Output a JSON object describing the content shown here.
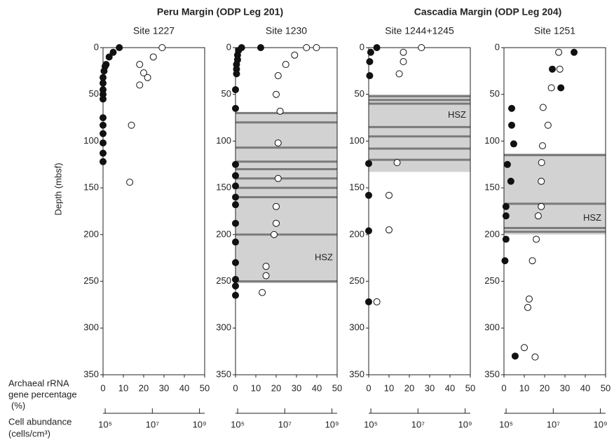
{
  "headers": [
    "Peru Margin (ODP Leg 201)",
    "Cascadia Margin (ODP Leg 204)"
  ],
  "ylabel": "Depth (mbsf)",
  "xlabel": [
    "Archaeal rRNA",
    "gene percentage",
    "(%)"
  ],
  "x2label": [
    "Cell abundance",
    "(cells/cm³)"
  ],
  "chart_data": [
    {
      "type": "scatter",
      "title": "Site 1227",
      "ylim": [
        0,
        350
      ],
      "y_inverted": true,
      "yticks": [
        0,
        50,
        100,
        150,
        200,
        250,
        300,
        350
      ],
      "xlim": [
        0,
        50
      ],
      "xticks": [
        0,
        10,
        20,
        30,
        40,
        50
      ],
      "x2lim": [
        81000,
        1660000000
      ],
      "x2log": true,
      "x2ticks": [
        {
          "value": 100000,
          "label": "10⁵"
        },
        {
          "value": 10000000,
          "label": "10⁷"
        },
        {
          "value": 1000000000,
          "label": "10⁹"
        }
      ],
      "series": [
        {
          "marker": "filled",
          "color": "#111111",
          "x": [
            8,
            5,
            3,
            1.5,
            1,
            0.5,
            0,
            0,
            0,
            0,
            0,
            0,
            0,
            0,
            0,
            0,
            0
          ],
          "y": [
            0,
            5,
            10,
            18,
            20,
            25,
            32,
            38,
            45,
            50,
            55,
            75,
            83,
            92,
            102,
            113,
            122
          ]
        },
        {
          "marker": "open",
          "color": "#111111",
          "axis": "x2",
          "x": [
            26000000,
            11000000,
            2900000,
            4300000,
            6300000,
            2900000,
            1300000,
            1100000
          ],
          "y": [
            0,
            10,
            18,
            27,
            32,
            40,
            83,
            144
          ]
        }
      ]
    },
    {
      "type": "scatter",
      "title": "Site 1230",
      "ylim": [
        0,
        350
      ],
      "y_inverted": true,
      "yticks": [
        0,
        50,
        100,
        150,
        200,
        250,
        300,
        350
      ],
      "xlim": [
        0,
        50
      ],
      "xticks": [
        0,
        10,
        20,
        30,
        40,
        50
      ],
      "x2lim": [
        81000,
        1660000000
      ],
      "x2log": true,
      "x2ticks": [
        {
          "value": 100000,
          "label": "10⁵"
        },
        {
          "value": 10000000,
          "label": "10⁷"
        },
        {
          "value": 1000000000,
          "label": "10⁹"
        }
      ],
      "hsz": {
        "label": "HSZ",
        "range": [
          70,
          252
        ],
        "lines": [
          70,
          80,
          107,
          122,
          130,
          140,
          150,
          160,
          200,
          250
        ]
      },
      "series": [
        {
          "marker": "filled",
          "color": "#111111",
          "x": [
            12.4,
            3,
            1.5,
            1,
            1,
            0.5,
            0.5,
            0.5,
            0,
            0,
            0,
            0,
            0,
            0,
            0,
            0,
            0,
            0,
            0,
            0,
            0
          ],
          "y": [
            0,
            0,
            3,
            8,
            13,
            18,
            23,
            28,
            45,
            65,
            125,
            137,
            148,
            160,
            168,
            188,
            208,
            230,
            248,
            255,
            265
          ]
        },
        {
          "marker": "open",
          "color": "#111111",
          "axis": "x2",
          "x": [
            83000000,
            220000000,
            26000000,
            11000000,
            5200000,
            4300000,
            6300000,
            5200000,
            5200000,
            4300000,
            4300000,
            3500000,
            1600000,
            1600000,
            1100000
          ],
          "y": [
            0,
            0,
            8,
            18,
            30,
            50,
            68,
            102,
            140,
            170,
            188,
            200,
            234,
            244,
            262
          ]
        }
      ]
    },
    {
      "type": "scatter",
      "title": "Site 1244+1245",
      "ylim": [
        0,
        350
      ],
      "y_inverted": true,
      "yticks": [
        0,
        50,
        100,
        150,
        200,
        250,
        300,
        350
      ],
      "xlim": [
        0,
        50
      ],
      "xticks": [
        0,
        10,
        20,
        30,
        40,
        50
      ],
      "x2lim": [
        81000,
        1660000000
      ],
      "x2log": true,
      "x2ticks": [
        {
          "value": 100000,
          "label": "10⁵"
        },
        {
          "value": 10000000,
          "label": "10⁷"
        },
        {
          "value": 1000000000,
          "label": "10⁹"
        }
      ],
      "hsz": {
        "label": "HSZ",
        "range": [
          50,
          133
        ],
        "lines": [
          52,
          56,
          60,
          85,
          95,
          108,
          120
        ]
      },
      "series": [
        {
          "marker": "filled",
          "color": "#111111",
          "x": [
            4,
            1,
            0.5,
            0.5,
            0,
            0,
            0,
            0
          ],
          "y": [
            0,
            5,
            15,
            30,
            124,
            158,
            196,
            272
          ]
        },
        {
          "marker": "open",
          "color": "#111111",
          "axis": "x2",
          "x": [
            14000000,
            2400000,
            2400000,
            1600000,
            1300000,
            590000,
            590000,
            180000
          ],
          "y": [
            0,
            5,
            15,
            28,
            123,
            158,
            195,
            272
          ]
        }
      ]
    },
    {
      "type": "scatter",
      "title": "Site 1251",
      "ylim": [
        0,
        350
      ],
      "y_inverted": true,
      "yticks": [
        0,
        50,
        100,
        150,
        200,
        250,
        300,
        350
      ],
      "xlim": [
        0,
        50
      ],
      "xticks": [
        0,
        10,
        20,
        30,
        40,
        50
      ],
      "x2lim": [
        81000,
        1660000000
      ],
      "x2log": true,
      "x2ticks": [
        {
          "value": 100000,
          "label": "10⁵"
        },
        {
          "value": 10000000,
          "label": "10⁷"
        },
        {
          "value": 1000000000,
          "label": "10⁹"
        }
      ],
      "hsz": {
        "label": "HSZ",
        "range": [
          113,
          200
        ],
        "lines": [
          115,
          167,
          193,
          197
        ]
      },
      "series": [
        {
          "marker": "filled",
          "color": "#111111",
          "x": [
            34.5,
            23.8,
            28,
            3.8,
            3.8,
            4.8,
            1.7,
            3.4,
            1,
            1,
            1,
            0.5,
            5.5
          ],
          "y": [
            5,
            23,
            43,
            65,
            83,
            103,
            125,
            143,
            170,
            180,
            205,
            228,
            330
          ]
        },
        {
          "marker": "open",
          "color": "#111111",
          "axis": "x2",
          "x": [
            17000000,
            19000000,
            8300000,
            3700000,
            6000000,
            3500000,
            3200000,
            3100000,
            3100000,
            2300000,
            1900000,
            1300000,
            950000,
            830000,
            590000,
            1700000
          ],
          "y": [
            5,
            23,
            43,
            64,
            83,
            105,
            123,
            143,
            170,
            180,
            205,
            228,
            269,
            278,
            321,
            331
          ]
        }
      ]
    }
  ]
}
